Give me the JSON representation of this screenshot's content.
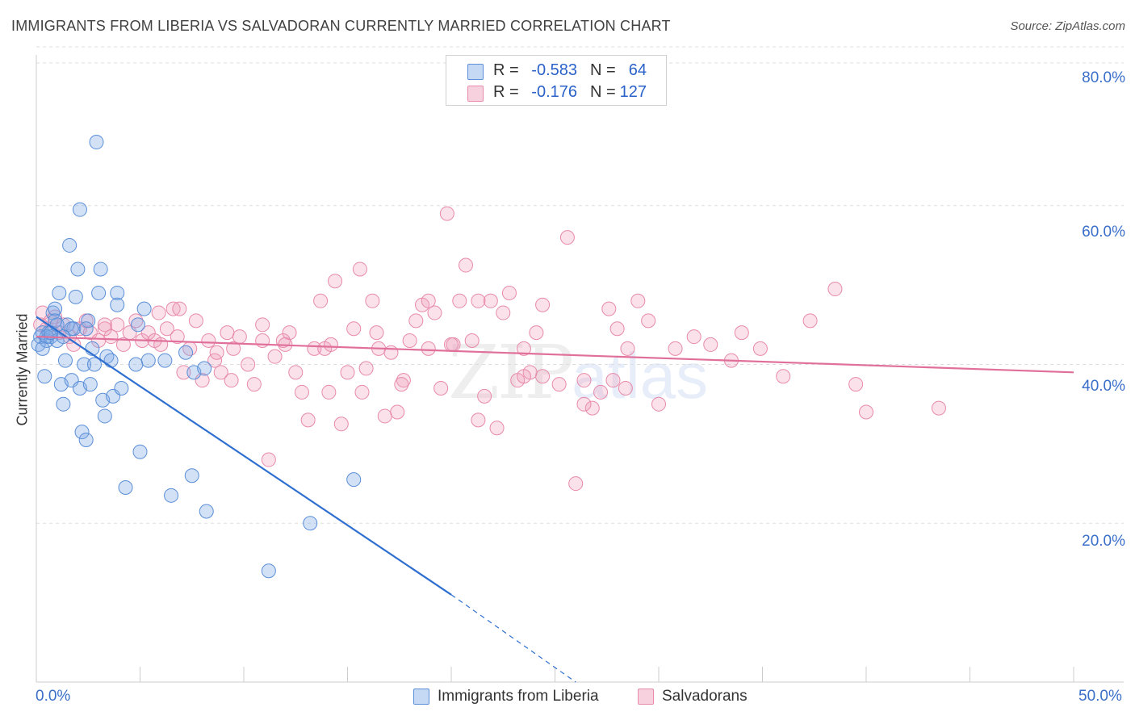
{
  "header": {
    "title": "IMMIGRANTS FROM LIBERIA VS SALVADORAN CURRENTLY MARRIED CORRELATION CHART",
    "source": "Source: ZipAtlas.com"
  },
  "legend": {
    "rows": [
      {
        "r_label": "R =",
        "r_value": "-0.583",
        "n_label": "N =",
        "n_value": "64",
        "color": "#7eaae6"
      },
      {
        "r_label": "R =",
        "r_value": "-0.176",
        "n_label": "N =",
        "n_value": "127",
        "color": "#f09ab8"
      }
    ]
  },
  "bottom_legend": {
    "series_a": "Immigrants from Liberia",
    "series_b": "Salvadorans"
  },
  "axes": {
    "y_label": "Currently Married",
    "y_ticks": [
      "80.0%",
      "60.0%",
      "40.0%",
      "20.0%"
    ],
    "x_min_label": "0.0%",
    "x_max_label": "50.0%"
  },
  "watermark": {
    "zip": "ZIP",
    "atlas": "atlas"
  },
  "colors": {
    "blue_fill": "rgba(126,170,230,0.35)",
    "blue_stroke": "#5b8fd8",
    "blue_line": "#2e6fd0",
    "pink_fill": "rgba(240,154,184,0.30)",
    "pink_stroke": "#e88aab",
    "pink_line": "#e0709a",
    "grid": "#dddddd"
  },
  "chart_data": {
    "type": "scatter",
    "title": "IMMIGRANTS FROM LIBERIA VS SALVADORAN CURRENTLY MARRIED CORRELATION CHART",
    "xlabel": "",
    "ylabel": "Currently Married",
    "xlim": [
      0,
      50
    ],
    "ylim": [
      0,
      80
    ],
    "grid": true,
    "legend_placement": "top-center",
    "series": [
      {
        "name": "Immigrants from Liberia",
        "r": -0.583,
        "n": 64,
        "points": [
          [
            0.1,
            42.5
          ],
          [
            0.2,
            43.5
          ],
          [
            0.3,
            44.0
          ],
          [
            0.4,
            38.5
          ],
          [
            0.5,
            43.0
          ],
          [
            0.6,
            44.0
          ],
          [
            0.7,
            43.5
          ],
          [
            0.8,
            46.5
          ],
          [
            0.9,
            47.0
          ],
          [
            1.0,
            43.0
          ],
          [
            1.1,
            49.0
          ],
          [
            1.2,
            37.5
          ],
          [
            1.3,
            35.0
          ],
          [
            1.4,
            40.5
          ],
          [
            1.5,
            45.0
          ],
          [
            1.6,
            55.0
          ],
          [
            1.7,
            38.0
          ],
          [
            1.8,
            44.5
          ],
          [
            1.9,
            48.5
          ],
          [
            2.0,
            52.0
          ],
          [
            2.1,
            37.0
          ],
          [
            2.2,
            31.5
          ],
          [
            2.3,
            40.0
          ],
          [
            2.4,
            30.5
          ],
          [
            2.5,
            45.5
          ],
          [
            2.6,
            37.5
          ],
          [
            2.7,
            42.0
          ],
          [
            2.8,
            40.0
          ],
          [
            2.9,
            68.0
          ],
          [
            3.0,
            49.0
          ],
          [
            3.1,
            52.0
          ],
          [
            3.2,
            35.5
          ],
          [
            3.3,
            33.5
          ],
          [
            3.4,
            41.0
          ],
          [
            3.7,
            36.0
          ],
          [
            3.9,
            49.0
          ],
          [
            3.9,
            47.5
          ],
          [
            4.1,
            37.0
          ],
          [
            4.3,
            24.5
          ],
          [
            4.8,
            40.0
          ],
          [
            4.9,
            45.0
          ],
          [
            5.0,
            29.0
          ],
          [
            5.2,
            47.0
          ],
          [
            5.4,
            40.5
          ],
          [
            6.2,
            40.5
          ],
          [
            6.5,
            23.5
          ],
          [
            7.2,
            41.5
          ],
          [
            7.5,
            26.0
          ],
          [
            7.6,
            39.0
          ],
          [
            8.1,
            39.5
          ],
          [
            8.2,
            21.5
          ],
          [
            11.2,
            14.0
          ],
          [
            13.2,
            20.0
          ],
          [
            15.3,
            25.5
          ],
          [
            2.1,
            59.5
          ],
          [
            0.9,
            45.5
          ],
          [
            1.7,
            44.5
          ],
          [
            0.5,
            43.5
          ],
          [
            1.3,
            43.5
          ],
          [
            2.4,
            44.5
          ],
          [
            0.7,
            44.0
          ],
          [
            1.0,
            45.0
          ],
          [
            0.3,
            42.0
          ],
          [
            3.6,
            40.5
          ]
        ]
      },
      {
        "name": "Salvadorans",
        "r": -0.176,
        "n": 127,
        "points": [
          [
            0.2,
            45.0
          ],
          [
            0.3,
            46.5
          ],
          [
            0.5,
            44.5
          ],
          [
            0.7,
            45.5
          ],
          [
            0.9,
            46.0
          ],
          [
            1.1,
            44.0
          ],
          [
            1.3,
            45.0
          ],
          [
            1.6,
            43.5
          ],
          [
            1.8,
            42.5
          ],
          [
            2.1,
            44.5
          ],
          [
            2.4,
            45.5
          ],
          [
            2.6,
            44.0
          ],
          [
            3.0,
            43.0
          ],
          [
            3.3,
            44.5
          ],
          [
            3.6,
            43.5
          ],
          [
            3.9,
            45.0
          ],
          [
            4.2,
            42.5
          ],
          [
            4.5,
            44.0
          ],
          [
            4.8,
            45.5
          ],
          [
            5.1,
            43.0
          ],
          [
            5.4,
            44.0
          ],
          [
            5.7,
            43.0
          ],
          [
            6.0,
            42.5
          ],
          [
            6.3,
            44.5
          ],
          [
            6.6,
            47.0
          ],
          [
            6.8,
            43.5
          ],
          [
            7.1,
            39.0
          ],
          [
            7.4,
            42.0
          ],
          [
            7.7,
            45.5
          ],
          [
            8.0,
            38.0
          ],
          [
            8.3,
            43.0
          ],
          [
            8.6,
            40.5
          ],
          [
            8.9,
            39.0
          ],
          [
            9.2,
            44.0
          ],
          [
            9.5,
            42.0
          ],
          [
            9.8,
            43.5
          ],
          [
            10.2,
            40.0
          ],
          [
            10.5,
            37.5
          ],
          [
            10.9,
            43.0
          ],
          [
            11.2,
            28.0
          ],
          [
            11.5,
            41.0
          ],
          [
            11.9,
            43.0
          ],
          [
            12.2,
            44.0
          ],
          [
            12.5,
            39.0
          ],
          [
            12.8,
            36.5
          ],
          [
            13.1,
            33.0
          ],
          [
            13.4,
            42.0
          ],
          [
            13.7,
            48.0
          ],
          [
            14.1,
            36.5
          ],
          [
            14.4,
            50.5
          ],
          [
            14.7,
            32.5
          ],
          [
            15.0,
            39.0
          ],
          [
            15.3,
            44.5
          ],
          [
            15.6,
            52.0
          ],
          [
            15.9,
            39.5
          ],
          [
            16.2,
            48.0
          ],
          [
            16.5,
            42.0
          ],
          [
            16.8,
            33.5
          ],
          [
            17.1,
            41.5
          ],
          [
            17.4,
            34.0
          ],
          [
            17.7,
            38.0
          ],
          [
            18.0,
            43.0
          ],
          [
            18.3,
            45.5
          ],
          [
            18.6,
            47.5
          ],
          [
            18.9,
            42.0
          ],
          [
            19.2,
            46.5
          ],
          [
            19.5,
            37.0
          ],
          [
            19.8,
            59.0
          ],
          [
            20.1,
            42.5
          ],
          [
            20.4,
            48.0
          ],
          [
            20.7,
            52.5
          ],
          [
            21.0,
            43.0
          ],
          [
            21.3,
            33.0
          ],
          [
            21.6,
            36.0
          ],
          [
            21.9,
            48.0
          ],
          [
            22.2,
            32.0
          ],
          [
            22.5,
            46.5
          ],
          [
            22.8,
            49.0
          ],
          [
            23.2,
            38.0
          ],
          [
            23.5,
            42.0
          ],
          [
            23.8,
            39.0
          ],
          [
            24.1,
            44.0
          ],
          [
            24.4,
            38.5
          ],
          [
            25.2,
            37.5
          ],
          [
            25.6,
            56.0
          ],
          [
            26.0,
            25.0
          ],
          [
            26.4,
            38.0
          ],
          [
            26.8,
            34.5
          ],
          [
            27.2,
            36.5
          ],
          [
            27.6,
            47.0
          ],
          [
            28.0,
            44.5
          ],
          [
            28.5,
            42.0
          ],
          [
            29.0,
            48.0
          ],
          [
            29.5,
            45.5
          ],
          [
            30.0,
            35.0
          ],
          [
            30.8,
            42.0
          ],
          [
            31.7,
            43.5
          ],
          [
            32.5,
            42.5
          ],
          [
            33.5,
            40.5
          ],
          [
            34.0,
            44.0
          ],
          [
            36.0,
            38.5
          ],
          [
            37.3,
            45.5
          ],
          [
            38.5,
            49.5
          ],
          [
            39.5,
            37.5
          ],
          [
            40.0,
            34.0
          ],
          [
            43.5,
            34.5
          ],
          [
            18.9,
            48.0
          ],
          [
            10.9,
            45.0
          ],
          [
            12.0,
            42.5
          ],
          [
            6.9,
            47.0
          ],
          [
            3.3,
            45.0
          ],
          [
            5.9,
            46.5
          ],
          [
            8.7,
            41.5
          ],
          [
            13.9,
            42.0
          ],
          [
            16.4,
            44.0
          ],
          [
            20.0,
            42.5
          ],
          [
            24.4,
            47.5
          ],
          [
            27.8,
            38.0
          ],
          [
            9.4,
            38.0
          ],
          [
            14.2,
            42.5
          ],
          [
            15.7,
            36.5
          ],
          [
            17.6,
            37.5
          ],
          [
            21.3,
            48.0
          ],
          [
            23.5,
            38.5
          ],
          [
            26.4,
            35.0
          ],
          [
            28.4,
            37.0
          ],
          [
            34.9,
            42.0
          ]
        ]
      }
    ],
    "trendlines": [
      {
        "series": "Immigrants from Liberia",
        "x0": 0.0,
        "y0": 46.0,
        "x1": 20.0,
        "y1": 11.0,
        "dashed_extension_to": [
          26.0,
          0.0
        ]
      },
      {
        "series": "Salvadorans",
        "x0": 0.0,
        "y0": 43.5,
        "x1": 50.0,
        "y1": 39.0
      }
    ]
  }
}
